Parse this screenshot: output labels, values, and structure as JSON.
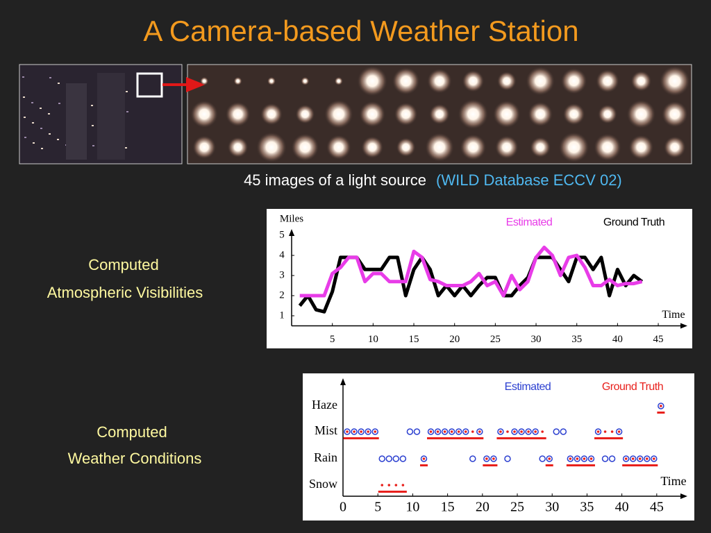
{
  "title": "A  Camera-based  Weather  Station",
  "caption": {
    "text": "45 images of a light source",
    "source": "(WILD  Database ECCV 02)"
  },
  "labels": [
    {
      "line1": "Computed",
      "line2": "Atmospheric Visibilities"
    },
    {
      "line1": "Computed",
      "line2": "Weather Conditions"
    }
  ],
  "chart_data": [
    {
      "type": "line",
      "ylabel": "Miles",
      "xlabel": "Time",
      "x": [
        1,
        2,
        3,
        4,
        5,
        6,
        7,
        8,
        9,
        10,
        11,
        12,
        13,
        14,
        15,
        16,
        17,
        18,
        19,
        20,
        21,
        22,
        23,
        24,
        25,
        26,
        27,
        28,
        29,
        30,
        31,
        32,
        33,
        34,
        35,
        36,
        37,
        38,
        39,
        40,
        41,
        42,
        43
      ],
      "series": [
        {
          "name": "Estimated",
          "color": "#e83ce8",
          "values": [
            2,
            2,
            2,
            2,
            3.1,
            3.4,
            3.9,
            3.9,
            2.7,
            3.1,
            3.1,
            2.7,
            2.7,
            2.7,
            4.2,
            3.9,
            2.8,
            2.7,
            2.5,
            2.5,
            2.5,
            2.7,
            3.1,
            2.5,
            2.7,
            2,
            3,
            2.3,
            2.7,
            3.9,
            4.4,
            4,
            3,
            3.9,
            4,
            3.4,
            2.5,
            2.5,
            2.8,
            2.5,
            2.6,
            2.6,
            2.7
          ]
        },
        {
          "name": "Ground Truth",
          "color": "#000000",
          "values": [
            1.5,
            2,
            1.3,
            1.2,
            2.2,
            3.9,
            3.9,
            3.9,
            3.3,
            3.3,
            3.3,
            3.9,
            3.9,
            2,
            3.3,
            3.9,
            3.3,
            2,
            2.5,
            2,
            2.5,
            2,
            2.5,
            2.9,
            2.9,
            2,
            2,
            2.5,
            2.9,
            3.9,
            3.9,
            3.9,
            3.3,
            2.7,
            3.9,
            3.9,
            3.3,
            3.9,
            2,
            3.3,
            2.5,
            3,
            2.7
          ]
        }
      ],
      "xlim": [
        0,
        49
      ],
      "xticks": [
        5,
        10,
        15,
        20,
        25,
        30,
        35,
        40,
        45
      ],
      "ylim": [
        0.5,
        5.5
      ],
      "yticks": [
        1,
        2,
        3,
        4,
        5
      ]
    },
    {
      "type": "scatter",
      "xlabel": "Time",
      "ycategories": [
        "Snow",
        "Rain",
        "Mist",
        "Haze"
      ],
      "series": [
        {
          "name": "Estimated",
          "color": "#2b3fd0",
          "x": [
            1,
            2,
            3,
            4,
            5,
            10,
            11,
            13,
            14,
            15,
            16,
            17,
            18,
            20,
            23,
            25,
            26,
            27,
            28,
            31,
            32,
            37,
            40,
            6,
            7,
            8,
            9,
            12,
            19,
            21,
            22,
            24,
            29,
            30,
            33,
            34,
            35,
            36,
            38,
            39,
            41,
            42,
            43,
            44,
            45,
            46
          ],
          "values": [
            "Mist",
            "Mist",
            "Mist",
            "Mist",
            "Mist",
            "Mist",
            "Mist",
            "Mist",
            "Mist",
            "Mist",
            "Mist",
            "Mist",
            "Mist",
            "Mist",
            "Mist",
            "Mist",
            "Mist",
            "Mist",
            "Mist",
            "Mist",
            "Mist",
            "Mist",
            "Mist",
            "Rain",
            "Rain",
            "Rain",
            "Rain",
            "Rain",
            "Rain",
            "Rain",
            "Rain",
            "Rain",
            "Rain",
            "Rain",
            "Rain",
            "Rain",
            "Rain",
            "Rain",
            "Rain",
            "Rain",
            "Rain",
            "Rain",
            "Rain",
            "Rain",
            "Rain",
            "Haze"
          ]
        },
        {
          "name": "Ground Truth",
          "color": "#e8201c",
          "x": [
            1,
            2,
            3,
            4,
            5,
            13,
            14,
            15,
            16,
            17,
            18,
            19,
            20,
            23,
            24,
            25,
            26,
            27,
            28,
            29,
            37,
            38,
            39,
            40,
            12,
            21,
            22,
            30,
            33,
            34,
            35,
            36,
            41,
            42,
            43,
            44,
            45,
            6,
            7,
            8,
            9,
            46
          ],
          "values": [
            "Mist",
            "Mist",
            "Mist",
            "Mist",
            "Mist",
            "Mist",
            "Mist",
            "Mist",
            "Mist",
            "Mist",
            "Mist",
            "Mist",
            "Mist",
            "Mist",
            "Mist",
            "Mist",
            "Mist",
            "Mist",
            "Mist",
            "Mist",
            "Mist",
            "Mist",
            "Mist",
            "Mist",
            "Rain",
            "Rain",
            "Rain",
            "Rain",
            "Rain",
            "Rain",
            "Rain",
            "Rain",
            "Rain",
            "Rain",
            "Rain",
            "Rain",
            "Rain",
            "Snow",
            "Snow",
            "Snow",
            "Snow",
            "Haze"
          ]
        }
      ],
      "xlim": [
        0,
        49
      ],
      "xticks": [
        0,
        5,
        10,
        15,
        20,
        25,
        30,
        35,
        40,
        45
      ]
    }
  ]
}
